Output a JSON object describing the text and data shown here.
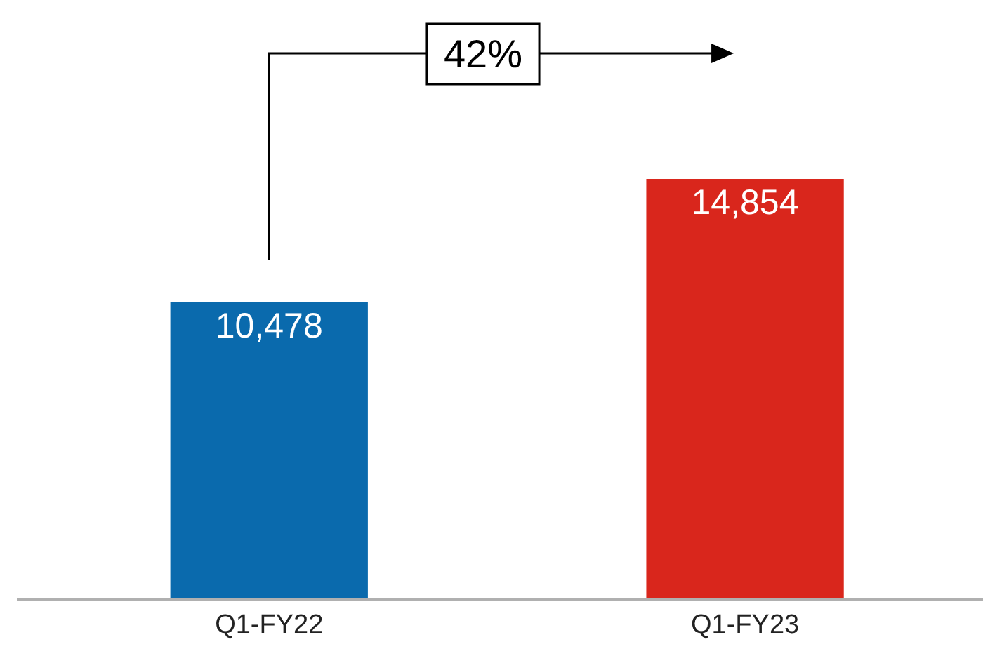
{
  "chart_data": {
    "type": "bar",
    "categories": [
      "Q1-FY22",
      "Q1-FY23"
    ],
    "values": [
      10478,
      14854
    ],
    "colors": [
      "#0a6aad",
      "#d9261c"
    ],
    "value_labels": [
      "10,478",
      "14,854"
    ],
    "annotations": [
      "42%"
    ]
  }
}
